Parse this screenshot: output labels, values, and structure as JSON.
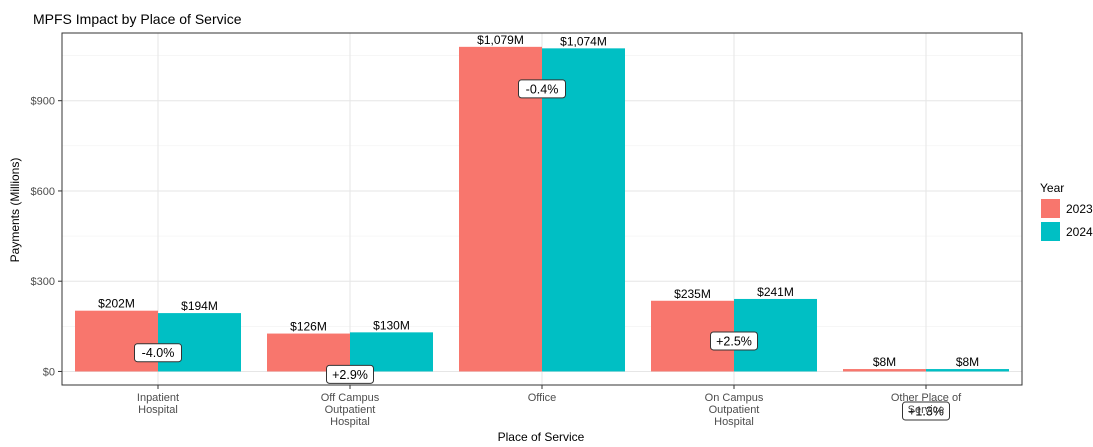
{
  "chart_data": {
    "type": "bar",
    "title": "MPFS Impact by Place of Service",
    "xlabel": "Place of Service",
    "ylabel": "Payments (Millions)",
    "categories": [
      [
        "Inpatient",
        "Hospital"
      ],
      [
        "Off Campus",
        "Outpatient",
        "Hospital"
      ],
      [
        "Office"
      ],
      [
        "On Campus",
        "Outpatient",
        "Hospital"
      ],
      [
        "Other Place of",
        "Service"
      ]
    ],
    "series": [
      {
        "name": "2023",
        "color": "#F8766D",
        "values": [
          202,
          126,
          1079,
          235,
          8
        ],
        "labels": [
          "$202M",
          "$126M",
          "$1,079M",
          "$235M",
          "$8M"
        ]
      },
      {
        "name": "2024",
        "color": "#00BFC4",
        "values": [
          194,
          130,
          1074,
          241,
          8
        ],
        "labels": [
          "$194M",
          "$130M",
          "$1,074M",
          "$241M",
          "$8M"
        ]
      }
    ],
    "change_labels": [
      "-4.0%",
      "+2.9%",
      "-0.4%",
      "+2.5%",
      "+1.3%"
    ],
    "ylim": [
      -45,
      1125
    ],
    "yticks": [
      0,
      300,
      600,
      900
    ],
    "ytick_labels": [
      "$0",
      "$300",
      "$600",
      "$900"
    ],
    "legend": {
      "title": "Year",
      "position": "right"
    },
    "grid": true
  }
}
